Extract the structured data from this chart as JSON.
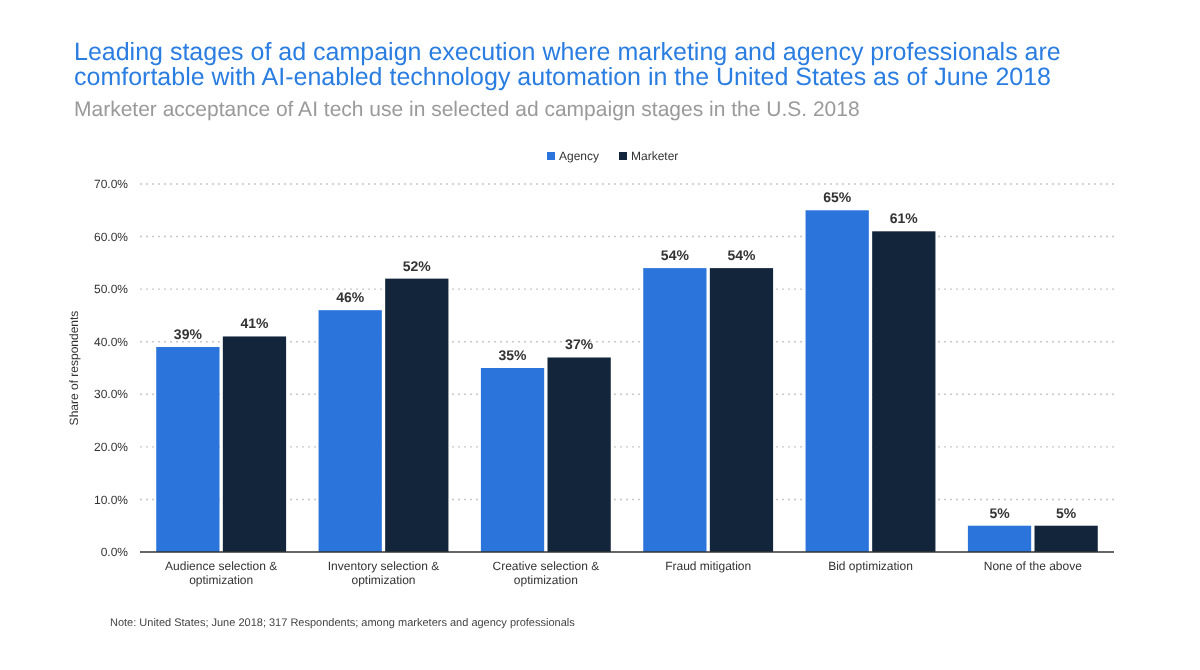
{
  "chart_data": {
    "type": "bar",
    "title": "Leading stages of ad campaign execution where marketing and agency professionals are comfortable with AI-enabled technology automation in the United States as of June 2018",
    "subtitle": "Marketer acceptance of AI tech use in selected ad campaign stages in the U.S. 2018",
    "ylabel": "Share of respondents",
    "categories": [
      "Audience selection & optimization",
      "Inventory selection & optimization",
      "Creative selection & optimization",
      "Fraud mitigation",
      "Bid optimization",
      "None of the above"
    ],
    "series": [
      {
        "name": "Agency",
        "color": "#2b74dc",
        "values": [
          39,
          46,
          35,
          54,
          65,
          5
        ],
        "value_labels": [
          "39%",
          "46%",
          "35%",
          "54%",
          "65%",
          "5%"
        ]
      },
      {
        "name": "Marketer",
        "color": "#13253b",
        "values": [
          41,
          52,
          37,
          54,
          61,
          5
        ],
        "value_labels": [
          "41%",
          "52%",
          "37%",
          "54%",
          "61%",
          "5%"
        ]
      }
    ],
    "ylim": [
      0,
      70
    ],
    "yticks": [
      {
        "value": 0,
        "label": "0.0%"
      },
      {
        "value": 10,
        "label": "10.0%"
      },
      {
        "value": 20,
        "label": "20.0%"
      },
      {
        "value": 30,
        "label": "30.0%"
      },
      {
        "value": 40,
        "label": "40.0%"
      },
      {
        "value": 50,
        "label": "50.0%"
      },
      {
        "value": 60,
        "label": "60.0%"
      },
      {
        "value": 70,
        "label": "70.0%"
      }
    ],
    "grid": "y",
    "legend": "top",
    "annotations": [
      "Note: United States; June 2018; 317 Respondents; among marketers and agency professionals"
    ]
  }
}
